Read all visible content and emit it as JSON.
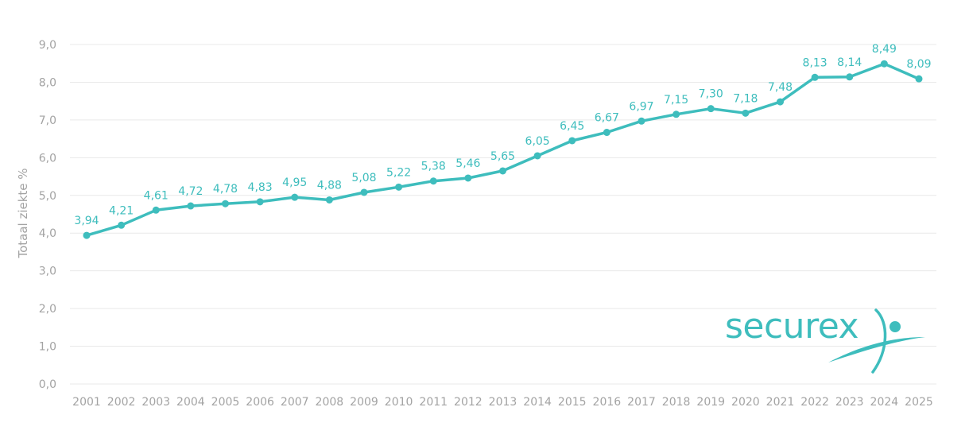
{
  "colors": {
    "series": "#3ebdbd",
    "grid": "#e9e9e9",
    "axis_text": "#a3a3a3",
    "brand": "#3ebdbd"
  },
  "chart_data": {
    "type": "line",
    "title": "",
    "xlabel": "",
    "ylabel": "Totaal ziekte %",
    "ylim": [
      0,
      9
    ],
    "y_ticks": [
      "0,0",
      "1,0",
      "2,0",
      "3,0",
      "4,0",
      "5,0",
      "6,0",
      "7,0",
      "8,0",
      "9,0"
    ],
    "grid": true,
    "categories": [
      "2001",
      "2002",
      "2003",
      "2004",
      "2005",
      "2006",
      "2007",
      "2008",
      "2009",
      "2010",
      "2011",
      "2012",
      "2013",
      "2014",
      "2015",
      "2016",
      "2017",
      "2018",
      "2019",
      "2020",
      "2021",
      "2022",
      "2023",
      "2024",
      "2025"
    ],
    "series": [
      {
        "name": "Totaal ziekte %",
        "values": [
          3.94,
          4.21,
          4.61,
          4.72,
          4.78,
          4.83,
          4.95,
          4.88,
          5.08,
          5.22,
          5.38,
          5.46,
          5.65,
          6.05,
          6.45,
          6.67,
          6.97,
          7.15,
          7.3,
          7.18,
          7.48,
          8.13,
          8.14,
          8.49,
          8.09
        ],
        "labels": [
          "3,94",
          "4,21",
          "4,61",
          "4,72",
          "4,78",
          "4,83",
          "4,95",
          "4,88",
          "5,08",
          "5,22",
          "5,38",
          "5,46",
          "5,65",
          "6,05",
          "6,45",
          "6,67",
          "6,97",
          "7,15",
          "7,30",
          "7,18",
          "7,48",
          "8,13",
          "8,14",
          "8,49",
          "8,09"
        ]
      }
    ]
  },
  "logo": {
    "text": "securex"
  }
}
